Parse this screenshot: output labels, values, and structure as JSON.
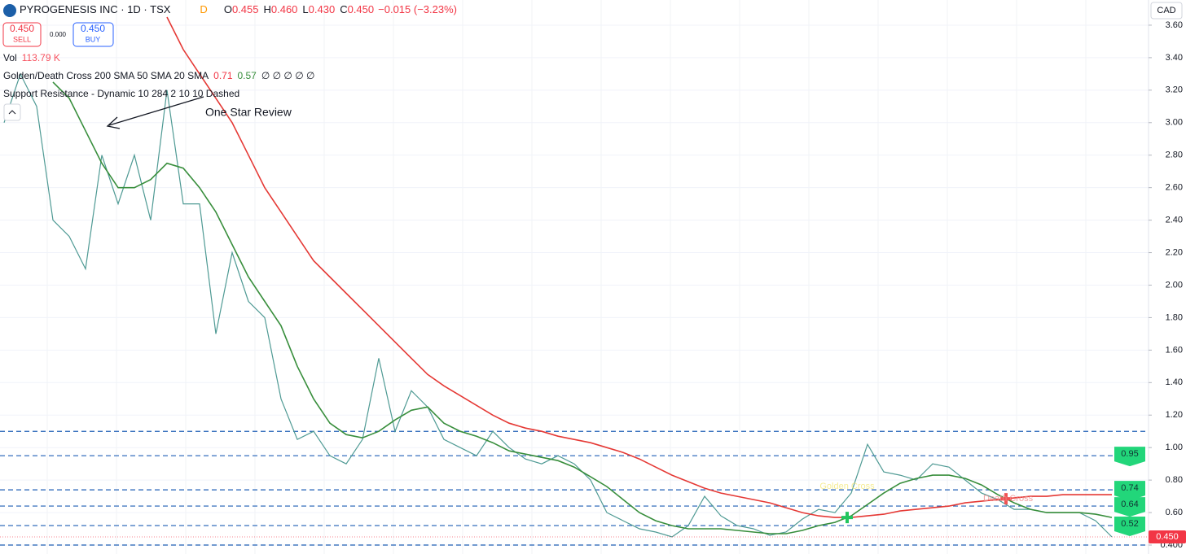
{
  "toolbar": {
    "symbol": "PYROGENESIS INC · 1D · TSX",
    "badge": "D",
    "ohlc": [
      {
        "key": "O",
        "value": "0.455"
      },
      {
        "key": "H",
        "value": "0.460"
      },
      {
        "key": "L",
        "value": "0.430"
      },
      {
        "key": "C",
        "value": "0.450"
      }
    ],
    "change": "−0.015 (−3.23%)",
    "sell": {
      "price": "0.450",
      "label": "SELL"
    },
    "spread": "0.000",
    "buy": {
      "price": "0.450",
      "label": "BUY"
    },
    "currency": "CAD"
  },
  "indicators": [
    {
      "name": "Vol",
      "values": [
        "113.79 K"
      ]
    },
    {
      "name": "Golden/Death Cross 200 SMA 50 SMA 20 SMA",
      "values": [
        "0.71",
        "0.57",
        "∅ ∅ ∅ ∅ ∅"
      ]
    },
    {
      "name": "Support Resistance - Dynamic 10 284 2 10 10 Dashed"
    }
  ],
  "annotation": "One Star Review",
  "chart_data": {
    "type": "line",
    "series": [
      {
        "color": "#4f9a94",
        "values": [
          3.0,
          3.3,
          3.1,
          2.4,
          2.3,
          2.1,
          2.8,
          2.5,
          2.8,
          2.4,
          3.2,
          2.5,
          2.5,
          1.7,
          2.2,
          1.9,
          1.8,
          1.3,
          1.05,
          1.1,
          0.95,
          0.9,
          1.05,
          1.55,
          1.1,
          1.35,
          1.25,
          1.05,
          1.0,
          0.95,
          1.1,
          1.0,
          0.93,
          0.9,
          0.95,
          0.9,
          0.8,
          0.6,
          0.55,
          0.5,
          0.48,
          0.45,
          0.52,
          0.7,
          0.58,
          0.52,
          0.5,
          0.46,
          0.48,
          0.56,
          0.62,
          0.6,
          0.72,
          1.02,
          0.85,
          0.83,
          0.8,
          0.9,
          0.88,
          0.8,
          0.72,
          0.68,
          0.62,
          0.62,
          0.6,
          0.6,
          0.6,
          0.55,
          0.45
        ]
      },
      {
        "color": "#388e3c",
        "values": [
          null,
          null,
          null,
          3.25,
          3.15,
          2.95,
          2.75,
          2.6,
          2.6,
          2.65,
          2.75,
          2.72,
          2.6,
          2.45,
          2.25,
          2.05,
          1.9,
          1.75,
          1.5,
          1.3,
          1.15,
          1.08,
          1.06,
          1.1,
          1.17,
          1.23,
          1.25,
          1.15,
          1.1,
          1.07,
          1.03,
          0.98,
          0.96,
          0.94,
          0.92,
          0.88,
          0.82,
          0.76,
          0.68,
          0.6,
          0.55,
          0.52,
          0.5,
          0.5,
          0.5,
          0.49,
          0.48,
          0.47,
          0.47,
          0.49,
          0.52,
          0.54,
          0.58,
          0.65,
          0.72,
          0.78,
          0.81,
          0.83,
          0.83,
          0.81,
          0.77,
          0.71,
          0.66,
          0.62,
          0.6,
          0.6,
          0.6,
          0.59,
          0.57
        ]
      },
      {
        "color": "#e53935",
        "values": [
          null,
          null,
          null,
          null,
          null,
          null,
          null,
          null,
          null,
          null,
          3.65,
          3.45,
          3.3,
          3.15,
          3.0,
          2.8,
          2.6,
          2.45,
          2.3,
          2.15,
          2.05,
          1.95,
          1.85,
          1.75,
          1.65,
          1.55,
          1.45,
          1.38,
          1.32,
          1.26,
          1.2,
          1.15,
          1.12,
          1.1,
          1.07,
          1.05,
          1.03,
          1.0,
          0.97,
          0.93,
          0.88,
          0.83,
          0.79,
          0.75,
          0.72,
          0.7,
          0.68,
          0.66,
          0.63,
          0.6,
          0.58,
          0.57,
          0.57,
          0.58,
          0.59,
          0.61,
          0.62,
          0.63,
          0.64,
          0.66,
          0.67,
          0.68,
          0.69,
          0.7,
          0.7,
          0.71,
          0.71,
          0.71,
          0.71
        ]
      }
    ],
    "cross_labels": {
      "golden": "Golden Cross",
      "death": "Death Cross"
    },
    "support_levels": [
      1.1,
      0.95,
      0.74,
      0.64,
      0.52,
      0.4
    ],
    "level_tags": [
      0.95,
      0.74,
      0.64,
      0.52
    ],
    "level_color": "#1e5eb5",
    "tag_color": "#22d67a",
    "last_price": {
      "value": 0.45,
      "label": "0.450"
    },
    "last_price_color": "#f23645",
    "ylim": [
      0.345,
      3.755
    ],
    "yticks": [
      {
        "value": 0.4,
        "label": "0.400"
      },
      {
        "value": 0.6,
        "label": "0.60"
      },
      {
        "value": 0.8,
        "label": "0.80"
      },
      {
        "value": 1.0,
        "label": "1.00"
      },
      {
        "value": 1.2,
        "label": "1.20"
      },
      {
        "value": 1.4,
        "label": "1.40"
      },
      {
        "value": 1.6,
        "label": "1.60"
      },
      {
        "value": 1.8,
        "label": "1.80"
      },
      {
        "value": 2.0,
        "label": "2.00"
      },
      {
        "value": 2.2,
        "label": "2.20"
      },
      {
        "value": 2.4,
        "label": "2.40"
      },
      {
        "value": 2.6,
        "label": "2.60"
      },
      {
        "value": 2.8,
        "label": "2.80"
      },
      {
        "value": 3.0,
        "label": "3.00"
      },
      {
        "value": 3.2,
        "label": "3.20"
      },
      {
        "value": 3.4,
        "label": "3.40"
      },
      {
        "value": 3.6,
        "label": "3.60"
      }
    ],
    "grid": true
  }
}
